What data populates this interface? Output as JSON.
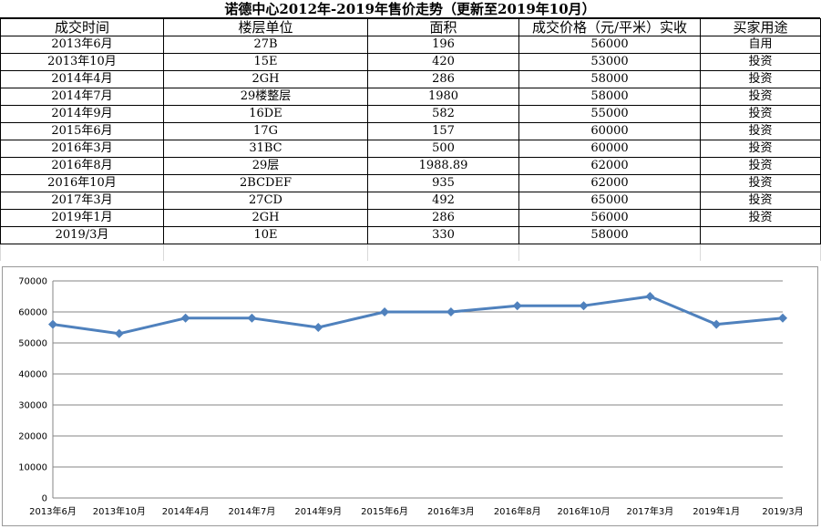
{
  "table": {
    "title": "诺德中心2012年-2019年售价走势（更新至2019年10月）",
    "headers": [
      "成交时间",
      "楼层单位",
      "面积",
      "成交价格（元/平米）实收",
      "买家用途"
    ],
    "rows": [
      [
        "2013年6月",
        "27B",
        "196",
        "56000",
        "自用"
      ],
      [
        "2013年10月",
        "15E",
        "420",
        "53000",
        "投资"
      ],
      [
        "2014年4月",
        "2GH",
        "286",
        "58000",
        "投资"
      ],
      [
        "2014年7月",
        "29楼整层",
        "1980",
        "58000",
        "投资"
      ],
      [
        "2014年9月",
        "16DE",
        "582",
        "55000",
        "投资"
      ],
      [
        "2015年6月",
        "17G",
        "157",
        "60000",
        "投资"
      ],
      [
        "2016年3月",
        "31BC",
        "500",
        "60000",
        "投资"
      ],
      [
        "2016年8月",
        "29层",
        "1988.89",
        "62000",
        "投资"
      ],
      [
        "2016年10月",
        "2BCDEF",
        "935",
        "62000",
        "投资"
      ],
      [
        "2017年3月",
        "27CD",
        "492",
        "65000",
        "投资"
      ],
      [
        "2019年1月",
        "2GH",
        "286",
        "56000",
        "投资"
      ],
      [
        "2019/3月",
        "10E",
        "330",
        "58000",
        ""
      ]
    ]
  },
  "chart_data": {
    "type": "line",
    "categories": [
      "2013年6月",
      "2013年10月",
      "2014年4月",
      "2014年7月",
      "2014年9月",
      "2015年6月",
      "2016年3月",
      "2016年8月",
      "2016年10月",
      "2017年3月",
      "2019年1月",
      "2019/3月"
    ],
    "series": [
      {
        "values": [
          56000,
          53000,
          58000,
          58000,
          55000,
          60000,
          60000,
          62000,
          62000,
          65000,
          56000,
          58000
        ],
        "color": "#4f81bd"
      }
    ],
    "yticks": [
      "0",
      "10000",
      "20000",
      "30000",
      "40000",
      "50000",
      "60000",
      "70000"
    ],
    "ylim": [
      0,
      70000
    ],
    "grid": true,
    "legend": "none"
  }
}
